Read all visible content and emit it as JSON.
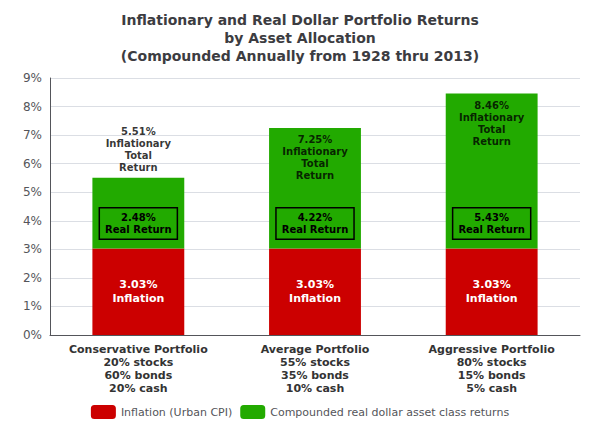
{
  "chart_data": {
    "type": "bar",
    "title": "Inflationary and Real Dollar Portfolio Returns\nby Asset Allocation\n(Compounded Annually from 1928 thru 2013)",
    "categories": [
      "Conservative Portfolio",
      "Average Portfolio",
      "Aggressive Portfolio"
    ],
    "stacked": true,
    "data_labels": true,
    "series": [
      {
        "name": "Inflation (Urban CPI)",
        "color": "#cc0000",
        "values": [
          3.03,
          3.03,
          3.03
        ],
        "value_labels": [
          "3.03%\nInflation",
          "3.03%\nInflation",
          "3.03%\nInflation"
        ]
      },
      {
        "name": "Compounded real dollar asset class returns",
        "color": "#22aa00",
        "values": [
          2.48,
          4.22,
          5.43
        ],
        "value_labels": [
          "2.48%\nReal Return",
          "4.22%\nReal Return",
          "5.43%\nReal Return"
        ]
      }
    ],
    "totals": {
      "values": [
        5.51,
        7.25,
        8.46
      ],
      "value_labels": [
        "5.51%\nInflationary\nTotal\nReturn",
        "7.25%\nInflationary\nTotal\nReturn",
        "8.46%\nInflationary\nTotal\nReturn"
      ]
    },
    "annotations": [
      {
        "category": "Conservative Portfolio",
        "text": "20% stocks\n60% bonds\n20% cash"
      },
      {
        "category": "Average Portfolio",
        "text": "55% stocks\n35% bonds\n10% cash"
      },
      {
        "category": "Aggressive Portfolio",
        "text": "80% stocks\n15% bonds\n5% cash"
      }
    ],
    "ylim": [
      0,
      9
    ],
    "yticks": [
      {
        "value": 0,
        "label": "0%"
      },
      {
        "value": 1,
        "label": "1%"
      },
      {
        "value": 2,
        "label": "2%"
      },
      {
        "value": 3,
        "label": "3%"
      },
      {
        "value": 4,
        "label": "4%"
      },
      {
        "value": 5,
        "label": "5%"
      },
      {
        "value": 6,
        "label": "6%"
      },
      {
        "value": 7,
        "label": "7%"
      },
      {
        "value": 8,
        "label": "8%"
      },
      {
        "value": 9,
        "label": "9%"
      }
    ],
    "grid": true,
    "legend": "bottom"
  }
}
